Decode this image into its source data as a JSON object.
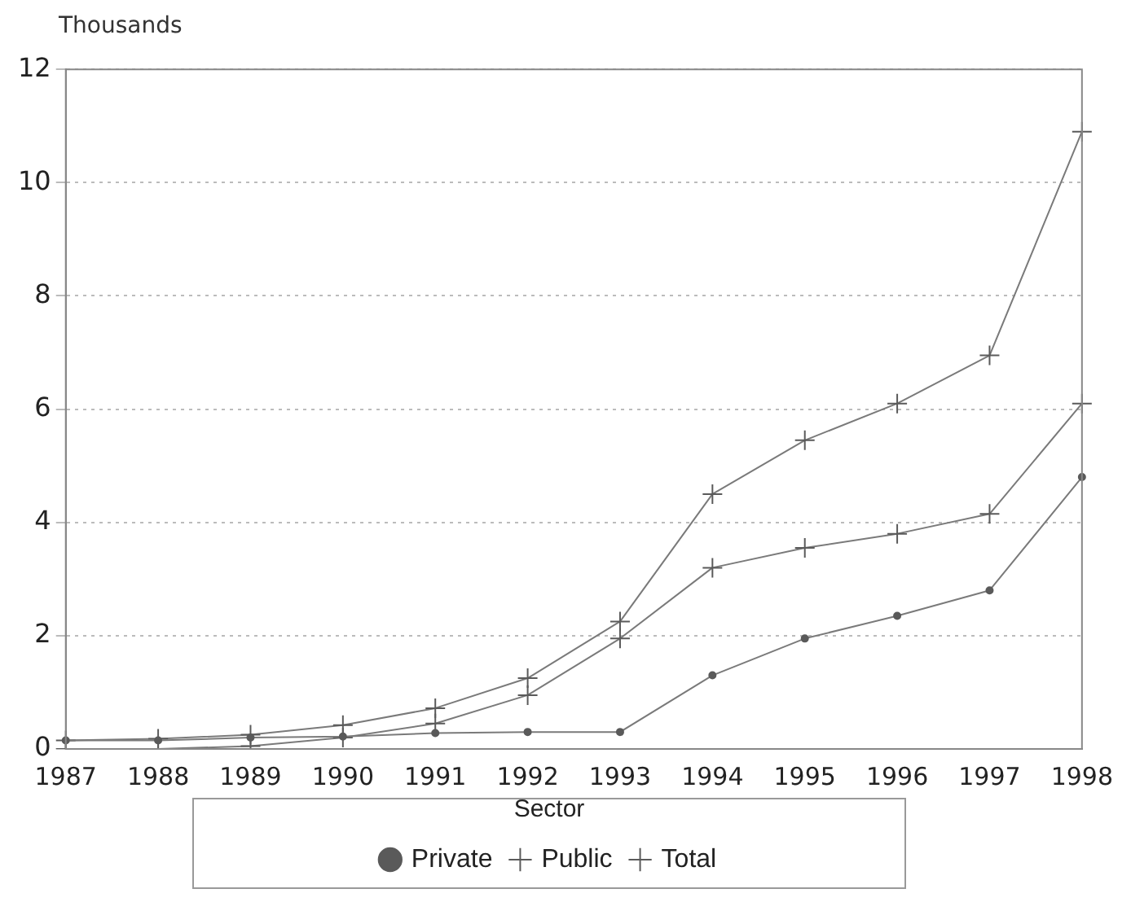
{
  "chart_data": {
    "type": "line",
    "ylabel": "Thousands",
    "legend_title": "Sector",
    "categories": [
      "1987",
      "1988",
      "1989",
      "1990",
      "1991",
      "1992",
      "1993",
      "1994",
      "1995",
      "1996",
      "1997",
      "1998"
    ],
    "series": [
      {
        "name": "Private",
        "color": "#7a7a7a",
        "marker": "circle",
        "values": [
          0.15,
          0.15,
          0.2,
          0.22,
          0.28,
          0.3,
          0.3,
          1.3,
          1.95,
          2.35,
          2.8,
          4.8
        ]
      },
      {
        "name": "Public",
        "color": "#7a7a7a",
        "marker": "cross",
        "values": [
          0,
          0,
          0.05,
          0.2,
          0.45,
          0.95,
          1.95,
          3.2,
          3.55,
          3.8,
          4.15,
          6.1
        ]
      },
      {
        "name": "Total",
        "color": "#7a7a7a",
        "marker": "cross",
        "values": [
          0.15,
          0.18,
          0.25,
          0.42,
          0.72,
          1.25,
          2.25,
          4.5,
          5.45,
          6.1,
          6.95,
          10.9
        ]
      }
    ],
    "ylim": [
      0,
      12
    ],
    "yticks": [
      0,
      2,
      4,
      6,
      8,
      10,
      12
    ],
    "grid": "y",
    "legend": "bottom",
    "line_style": "solid"
  }
}
